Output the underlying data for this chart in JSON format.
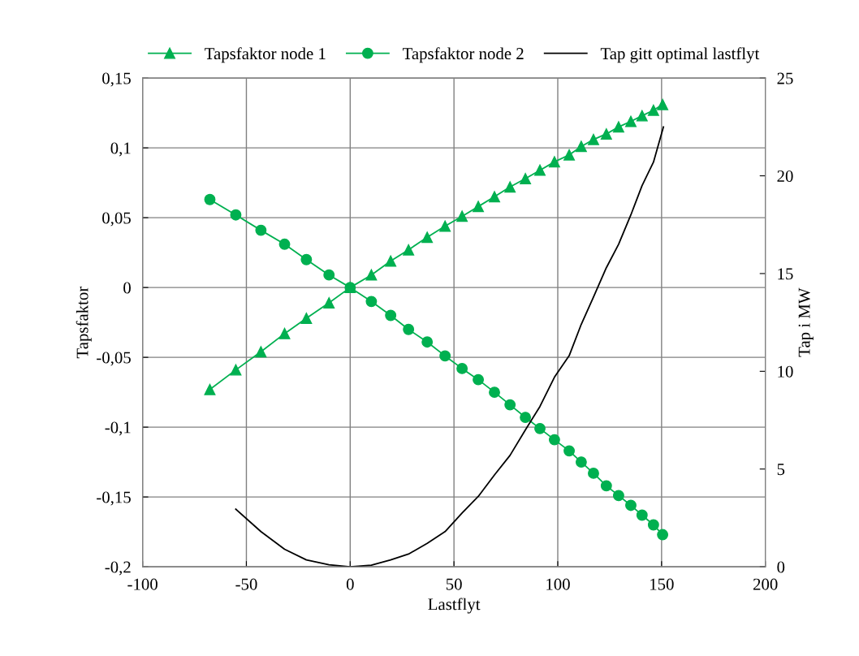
{
  "chart_data": {
    "type": "line",
    "xlabel": "Lastflyt",
    "ylabel": "Tapsfaktor",
    "y2label": "Tap i MW",
    "xlim": [
      -100,
      200
    ],
    "xticks": [
      -100,
      -50,
      0,
      50,
      100,
      150,
      200
    ],
    "ylim": [
      -0.2,
      0.15
    ],
    "yticks": [
      {
        "value": -0.2,
        "label": "-0,2"
      },
      {
        "value": -0.15,
        "label": "-0,15"
      },
      {
        "value": -0.1,
        "label": "-0,1"
      },
      {
        "value": -0.05,
        "label": "-0,05"
      },
      {
        "value": 0,
        "label": "0"
      },
      {
        "value": 0.05,
        "label": "0,05"
      },
      {
        "value": 0.1,
        "label": "0,1"
      },
      {
        "value": 0.15,
        "label": "0,15"
      }
    ],
    "y2lim": [
      0,
      25
    ],
    "y2ticks": [
      0,
      5,
      10,
      15,
      20,
      25
    ],
    "grid": true,
    "legend": "top",
    "series": [
      {
        "name": "Tapsfaktor node 1",
        "color": "#00b050",
        "marker": "triangle",
        "x": [
          -67.6,
          -55.1,
          -43.0,
          -31.6,
          -21.1,
          -10.2,
          0,
          10.2,
          19.5,
          28.1,
          37.1,
          45.7,
          53.9,
          61.7,
          69.5,
          77.0,
          84.4,
          91.4,
          98.4,
          105.5,
          111.3,
          117.2,
          123.4,
          129.3,
          135.2,
          140.6,
          146.1,
          150.5
        ],
        "values": [
          -0.073,
          -0.059,
          -0.046,
          -0.033,
          -0.022,
          -0.011,
          0,
          0.009,
          0.019,
          0.027,
          0.036,
          0.044,
          0.051,
          0.058,
          0.065,
          0.072,
          0.078,
          0.084,
          0.09,
          0.095,
          0.101,
          0.106,
          0.11,
          0.115,
          0.119,
          0.123,
          0.127,
          0.131
        ]
      },
      {
        "name": "Tapsfaktor node 2",
        "color": "#00b050",
        "marker": "circle",
        "x": [
          -67.6,
          -55.1,
          -43.0,
          -31.6,
          -21.1,
          -10.2,
          0,
          10.2,
          19.5,
          28.1,
          37.1,
          45.7,
          53.9,
          61.7,
          69.5,
          77.0,
          84.4,
          91.4,
          98.4,
          105.5,
          111.3,
          117.2,
          123.4,
          129.3,
          135.2,
          140.6,
          146.1,
          150.5
        ],
        "values": [
          0.063,
          0.052,
          0.041,
          0.031,
          0.02,
          0.009,
          0,
          -0.01,
          -0.02,
          -0.03,
          -0.039,
          -0.049,
          -0.058,
          -0.066,
          -0.075,
          -0.084,
          -0.093,
          -0.101,
          -0.109,
          -0.117,
          -0.125,
          -0.133,
          -0.142,
          -0.149,
          -0.156,
          -0.163,
          -0.17,
          -0.177
        ]
      },
      {
        "name": "Tap gitt optimal lastflyt",
        "color": "#000000",
        "marker": "none",
        "axis": "y2",
        "x": [
          -55.1,
          -43.0,
          -31.6,
          -21.1,
          -10.2,
          0,
          10.2,
          19.5,
          28.1,
          37.1,
          45.7,
          53.9,
          61.7,
          69.5,
          77.0,
          84.4,
          91.4,
          98.4,
          105.5,
          111.3,
          117.2,
          123.4,
          129.3,
          135.2,
          140.6,
          146.1,
          150.9
        ],
        "values": [
          2.95,
          1.8,
          0.9,
          0.35,
          0.1,
          0,
          0.08,
          0.35,
          0.65,
          1.2,
          1.8,
          2.75,
          3.6,
          4.7,
          5.7,
          7.0,
          8.2,
          9.7,
          10.8,
          12.4,
          13.8,
          15.3,
          16.5,
          18.0,
          19.5,
          20.7,
          22.5
        ]
      }
    ]
  }
}
